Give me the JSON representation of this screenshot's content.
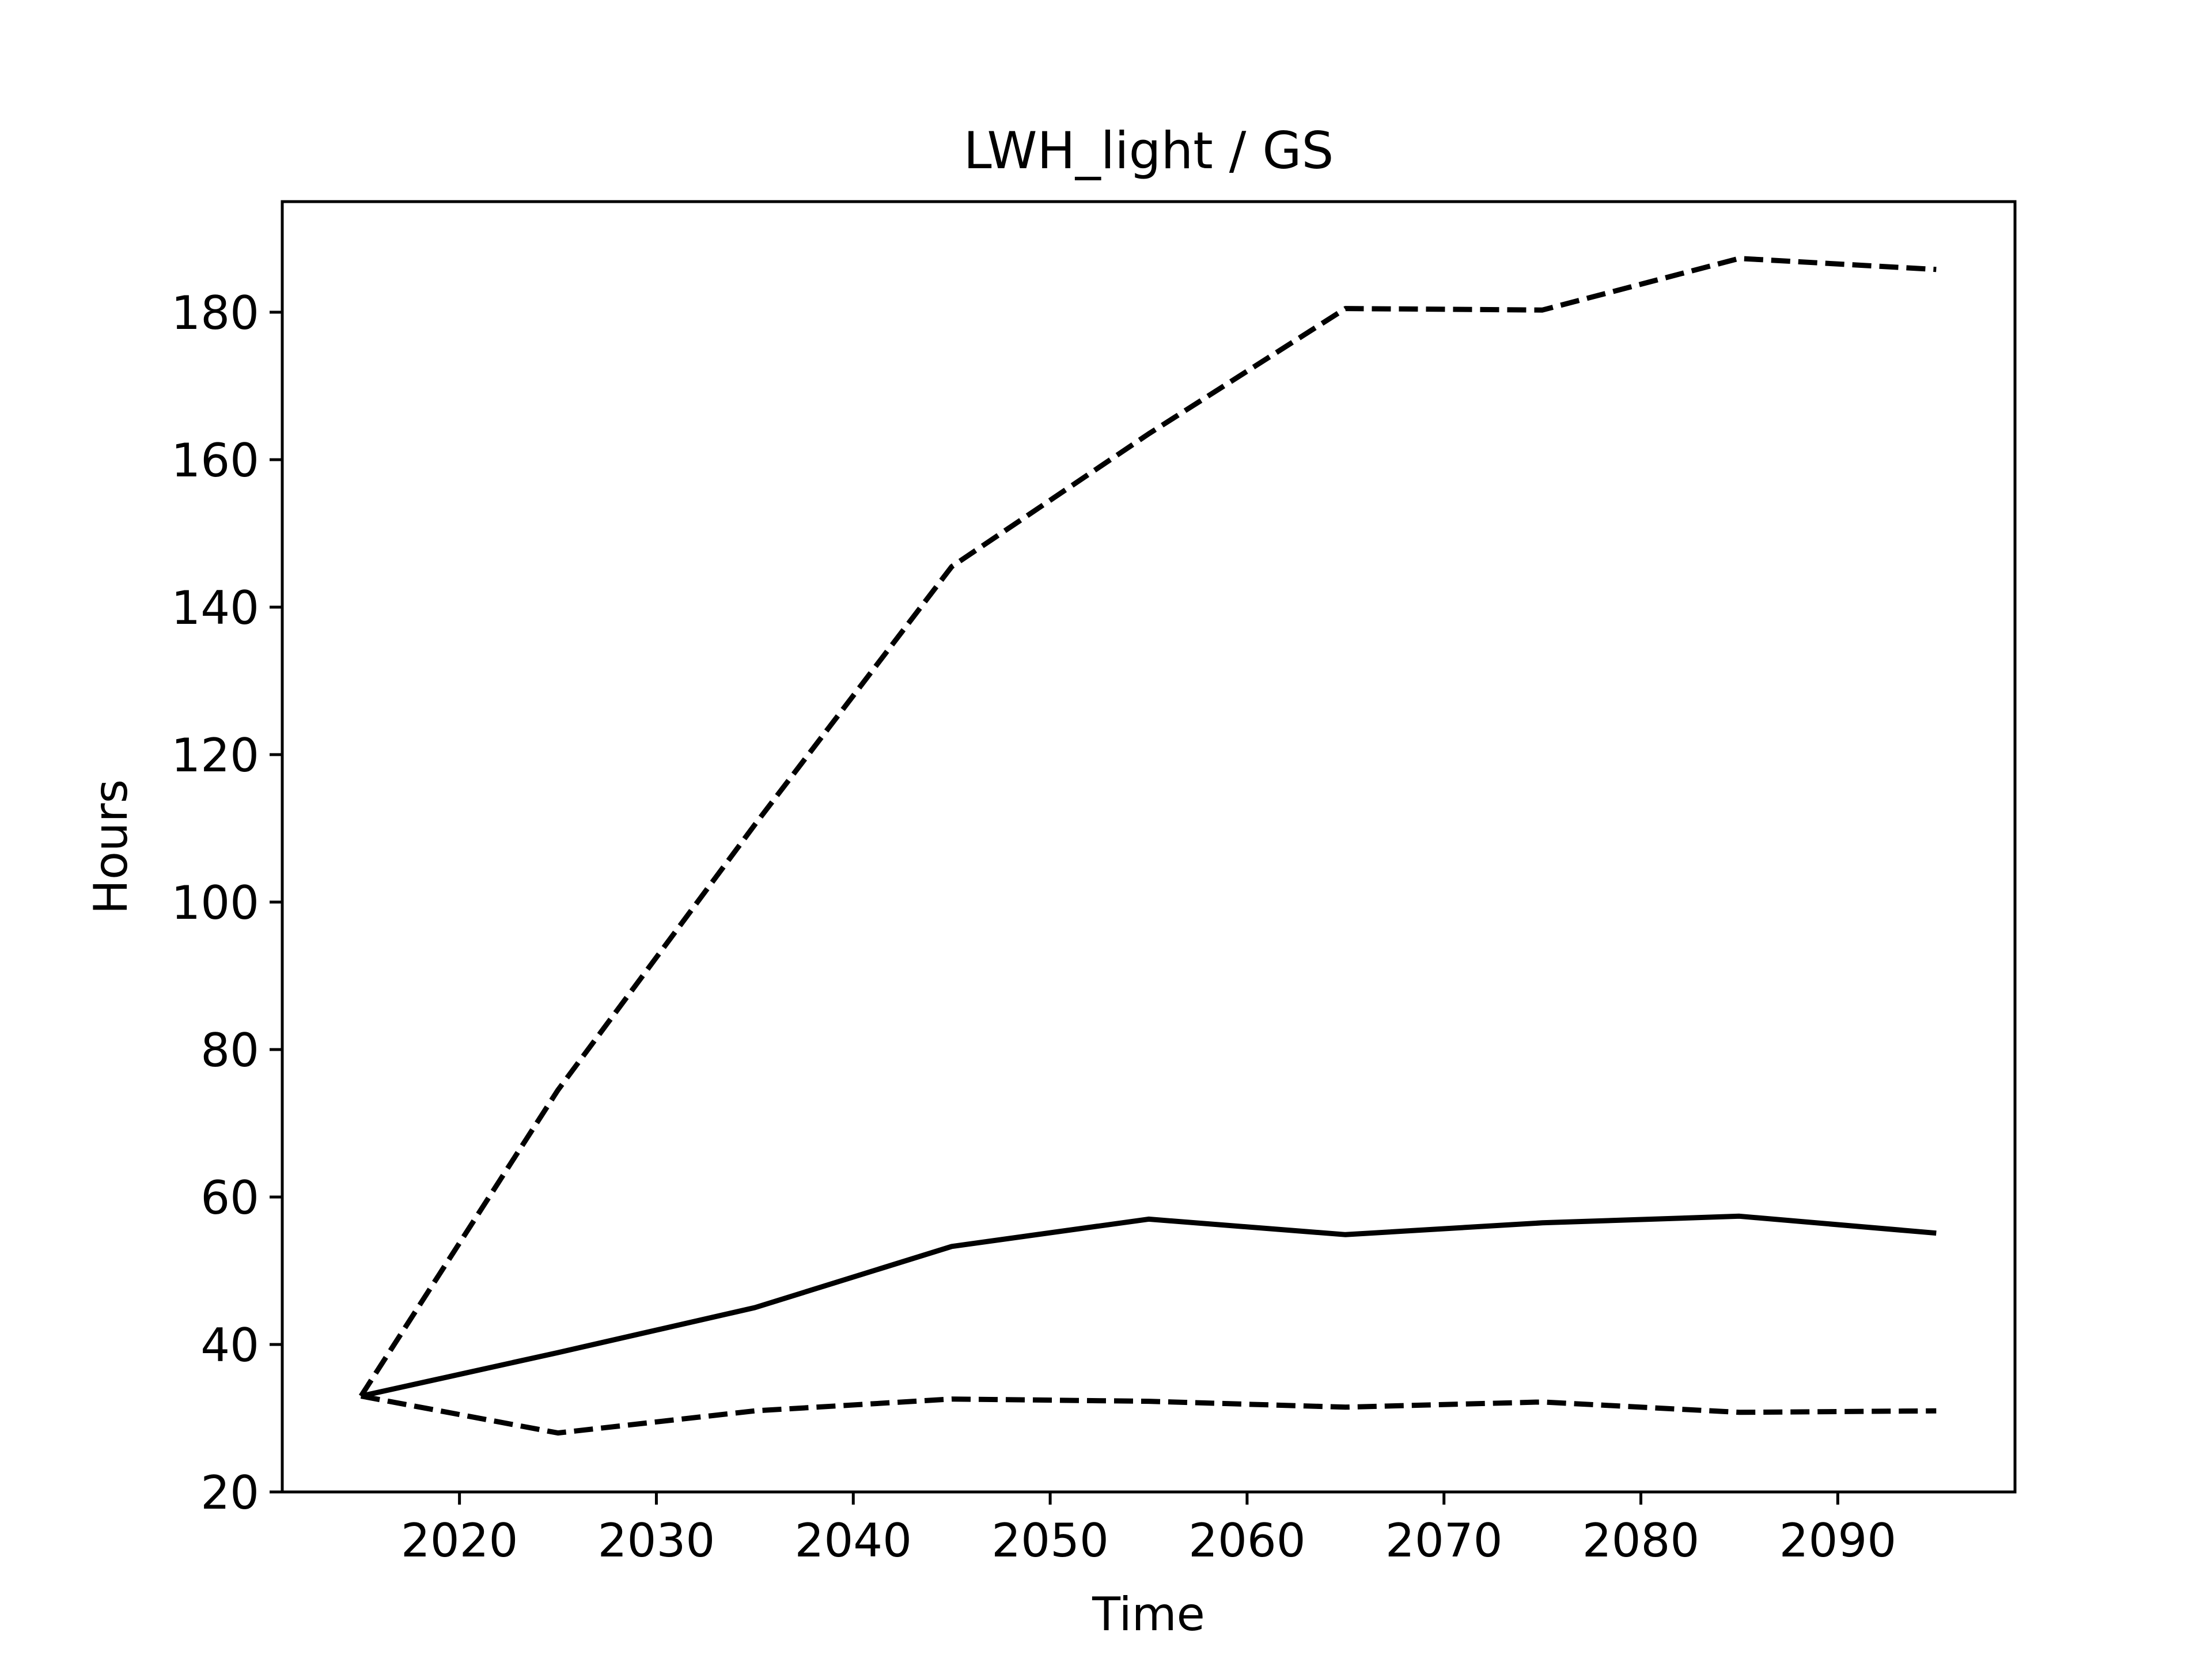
{
  "chart_data": {
    "type": "line",
    "title": "LWH_light / GS",
    "xlabel": "Time",
    "ylabel": "Hours",
    "xlim": [
      2011,
      2099
    ],
    "ylim": [
      20,
      195
    ],
    "xticks": [
      2020,
      2030,
      2040,
      2050,
      2060,
      2070,
      2080,
      2090
    ],
    "yticks": [
      20,
      40,
      60,
      80,
      100,
      120,
      140,
      160,
      180
    ],
    "grid": false,
    "legend": "none",
    "x": [
      2015,
      2025,
      2035,
      2045,
      2055,
      2065,
      2075,
      2085,
      2095
    ],
    "series": [
      {
        "style": "solid",
        "color": "#000000",
        "values": [
          33.0,
          38.9,
          45.0,
          53.3,
          57.0,
          54.9,
          56.5,
          57.4,
          55.1
        ]
      },
      {
        "style": "dashed",
        "color": "#000000",
        "values": [
          33.0,
          74.5,
          110.5,
          145.5,
          163.5,
          180.5,
          180.3,
          187.3,
          185.8
        ]
      },
      {
        "style": "dashed",
        "color": "#000000",
        "values": [
          33.0,
          28.0,
          31.0,
          32.6,
          32.3,
          31.5,
          32.2,
          30.8,
          31.0
        ]
      }
    ]
  }
}
